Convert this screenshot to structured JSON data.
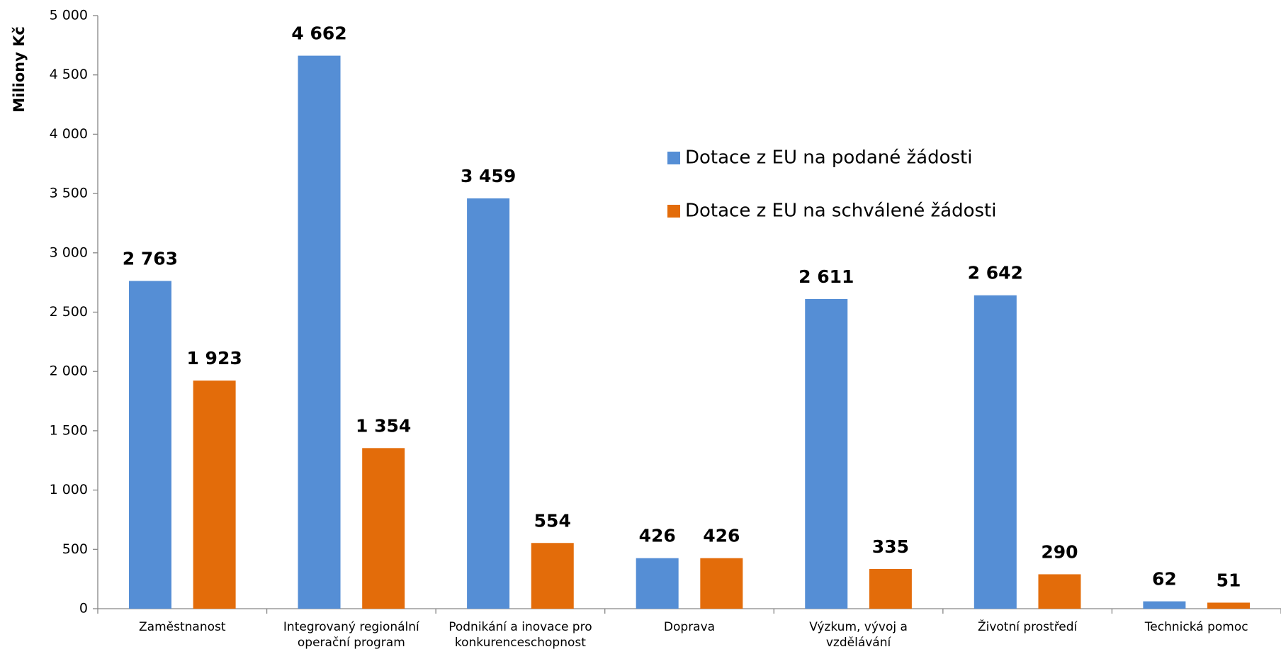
{
  "chart_data": {
    "type": "bar",
    "y_label": "Miliony Kč",
    "categories": [
      "Zaměstnanost",
      "Integrovaný regionální operační program",
      "Podnikání a inovace pro konkurenceschopnost",
      "Doprava",
      "Výzkum, vývoj a vzdělávání",
      "Životní prostředí",
      "Technická pomoc"
    ],
    "series": [
      {
        "name": "Dotace z EU na podané žádosti",
        "color": "#558ed5",
        "values": [
          2763,
          4662,
          3459,
          426,
          2611,
          2642,
          62
        ],
        "value_labels": [
          "2 763",
          "4 662",
          "3 459",
          "426",
          "2 611",
          "2 642",
          "62"
        ]
      },
      {
        "name": "Dotace z EU na schválené žádosti",
        "color": "#e36c0a",
        "values": [
          1923,
          1354,
          554,
          426,
          335,
          290,
          51
        ],
        "value_labels": [
          "1 923",
          "1 354",
          "554",
          "426",
          "335",
          "290",
          "51"
        ]
      }
    ],
    "ylim": [
      0,
      5000
    ],
    "yticks": [
      0,
      500,
      {
        "value": 1000,
        "label": "1 000"
      },
      {
        "value": 1500,
        "label": "1 500"
      },
      {
        "value": 2000,
        "label": "2 000"
      },
      {
        "value": 2500,
        "label": "2 500"
      },
      {
        "value": 3000,
        "label": "3 000"
      },
      {
        "value": 3500,
        "label": "3 500"
      },
      {
        "value": 4000,
        "label": "4 000"
      },
      {
        "value": 4500,
        "label": "4 500"
      },
      {
        "value": 5000,
        "label": "5 000"
      }
    ],
    "grid": false,
    "legend": "upper right"
  }
}
